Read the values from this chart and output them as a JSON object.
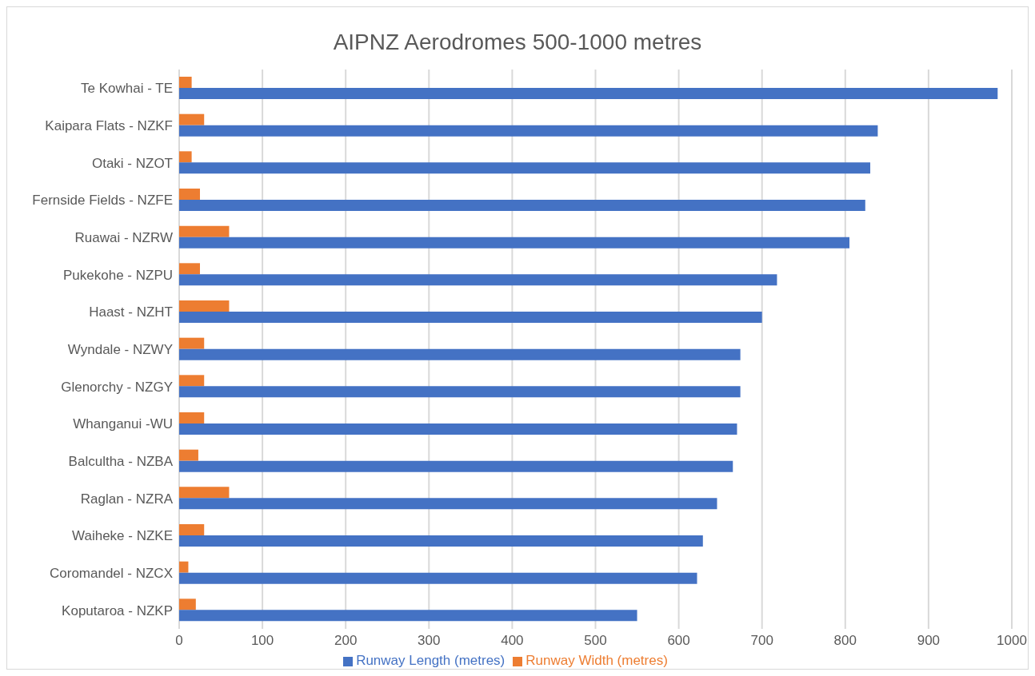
{
  "chart_data": {
    "type": "bar",
    "orientation": "horizontal",
    "title": "AIPNZ Aerodromes 500-1000 metres",
    "categories": [
      "Te Kowhai - TE",
      "Kaipara Flats - NZKF",
      "Otaki - NZOT",
      "Fernside Fields - NZFE",
      "Ruawai - NZRW",
      "Pukekohe - NZPU",
      "Haast - NZHT",
      "Wyndale - NZWY",
      "Glenorchy - NZGY",
      "Whanganui -WU",
      "Balcultha - NZBA",
      "Raglan - NZRA",
      "Waiheke - NZKE",
      "Coromandel - NZCX",
      "Koputaroa - NZKP"
    ],
    "series": [
      {
        "name": "Runway Width (metres)",
        "color": "#ed7d31",
        "values": [
          15,
          30,
          15,
          25,
          60,
          25,
          60,
          30,
          30,
          30,
          23,
          60,
          30,
          11,
          20
        ]
      },
      {
        "name": "Runway Length (metres)",
        "color": "#4472c4",
        "values": [
          983,
          839,
          830,
          824,
          805,
          718,
          700,
          674,
          674,
          670,
          665,
          646,
          629,
          622,
          550
        ]
      }
    ],
    "xlim": [
      0,
      1000
    ],
    "xticks": [
      0,
      100,
      200,
      300,
      400,
      500,
      600,
      700,
      800,
      900,
      1000
    ],
    "grid": "x",
    "legend": "bottom"
  }
}
